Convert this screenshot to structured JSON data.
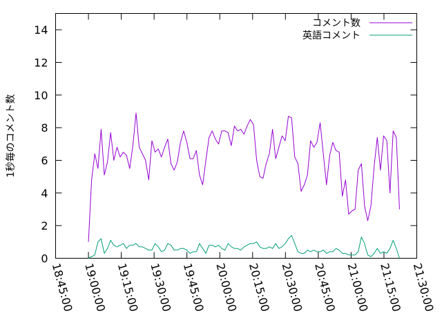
{
  "chart_data": {
    "type": "line",
    "title": "",
    "xlabel": "",
    "ylabel": "1秒毎のコメント数",
    "xlim": [
      "18:45:00",
      "21:30:00"
    ],
    "ylim": [
      0,
      15
    ],
    "grid": false,
    "legend_position": "top-right",
    "x_tick_labels": [
      "18:45:00",
      "19:00:00",
      "19:15:00",
      "19:30:00",
      "19:45:00",
      "20:00:00",
      "20:15:00",
      "20:30:00",
      "20:45:00",
      "21:00:00",
      "21:15:00",
      "21:30:00"
    ],
    "y_tick_labels": [
      "0",
      "2",
      "4",
      "6",
      "8",
      "10",
      "12",
      "14"
    ],
    "colors": {
      "comments": "#9400d3",
      "english": "#009e73"
    },
    "x": [
      "19:00:00",
      "19:01:27",
      "19:02:54",
      "19:04:21",
      "19:05:48",
      "19:07:15",
      "19:08:42",
      "19:10:09",
      "19:11:36",
      "19:13:03",
      "19:14:30",
      "19:15:57",
      "19:17:24",
      "19:18:51",
      "19:20:18",
      "19:21:45",
      "19:23:12",
      "19:24:39",
      "19:26:06",
      "19:27:33",
      "19:29:00",
      "19:30:27",
      "19:31:54",
      "19:33:21",
      "19:34:48",
      "19:36:15",
      "19:37:42",
      "19:39:09",
      "19:40:36",
      "19:42:03",
      "19:43:30",
      "19:44:57",
      "19:46:24",
      "19:47:51",
      "19:49:18",
      "19:50:45",
      "19:52:12",
      "19:53:39",
      "19:55:06",
      "19:56:33",
      "19:58:00",
      "19:59:27",
      "20:00:54",
      "20:02:21",
      "20:03:48",
      "20:05:15",
      "20:06:42",
      "20:08:09",
      "20:09:36",
      "20:11:03",
      "20:12:30",
      "20:13:57",
      "20:15:24",
      "20:16:51",
      "20:18:18",
      "20:19:45",
      "20:21:12",
      "20:22:39",
      "20:24:06",
      "20:25:33",
      "20:27:00",
      "20:28:27",
      "20:29:54",
      "20:31:21",
      "20:32:48",
      "20:34:15",
      "20:35:42",
      "20:37:09",
      "20:38:36",
      "20:40:03",
      "20:41:30",
      "20:42:57",
      "20:44:24",
      "20:45:51",
      "20:47:18",
      "20:48:45",
      "20:50:12",
      "20:51:39",
      "20:53:06",
      "20:54:33",
      "20:56:00",
      "20:57:27",
      "20:58:54",
      "21:00:21",
      "21:01:48",
      "21:03:15",
      "21:04:42",
      "21:06:09",
      "21:07:36",
      "21:09:03",
      "21:10:30",
      "21:11:57",
      "21:13:24",
      "21:14:51",
      "21:16:18",
      "21:17:45",
      "21:19:12",
      "21:20:39",
      "21:22:06"
    ],
    "series": [
      {
        "name": "コメント数",
        "values": [
          1.0,
          4.8,
          6.4,
          5.5,
          7.9,
          5.1,
          5.9,
          7.7,
          6.0,
          6.8,
          6.2,
          6.5,
          6.3,
          5.5,
          6.9,
          8.9,
          6.8,
          6.4,
          6.0,
          4.8,
          7.2,
          6.5,
          6.7,
          6.2,
          6.8,
          7.3,
          5.8,
          5.4,
          5.9,
          7.1,
          7.8,
          7.1,
          6.1,
          6.1,
          6.6,
          5.1,
          4.5,
          6.0,
          7.4,
          7.8,
          7.3,
          7.0,
          7.8,
          7.8,
          7.7,
          6.9,
          8.1,
          7.8,
          7.9,
          7.6,
          8.1,
          8.5,
          8.2,
          6.0,
          5.0,
          4.9,
          5.8,
          6.4,
          7.9,
          6.1,
          6.8,
          7.5,
          7.2,
          8.7,
          8.6,
          6.2,
          5.8,
          4.1,
          4.5,
          5.1,
          7.2,
          6.8,
          7.1,
          8.3,
          6.4,
          4.5,
          6.3,
          7.1,
          6.6,
          6.5,
          3.8,
          4.8,
          2.7,
          2.9,
          3.0,
          5.4,
          5.8,
          3.2,
          2.3,
          3.2,
          5.6,
          7.4,
          5.4,
          7.5,
          7.2,
          4.0,
          7.8,
          7.4,
          3.0
        ]
      },
      {
        "name": "英語コメント",
        "values": [
          0.0,
          0.1,
          0.2,
          1.0,
          1.2,
          0.3,
          0.6,
          1.1,
          0.8,
          0.7,
          0.8,
          0.9,
          0.6,
          0.8,
          0.8,
          0.9,
          0.7,
          0.7,
          0.6,
          0.5,
          0.5,
          0.9,
          0.7,
          0.4,
          0.5,
          0.9,
          0.8,
          0.5,
          0.5,
          0.6,
          0.6,
          0.5,
          0.3,
          0.4,
          0.4,
          0.9,
          0.6,
          0.3,
          0.8,
          0.8,
          0.7,
          0.8,
          0.6,
          0.5,
          0.9,
          0.7,
          0.6,
          0.6,
          0.5,
          0.7,
          0.8,
          0.9,
          0.9,
          1.0,
          0.7,
          0.6,
          0.6,
          0.7,
          0.6,
          0.9,
          0.6,
          0.7,
          0.9,
          1.2,
          1.4,
          0.9,
          0.4,
          0.3,
          0.3,
          0.5,
          0.4,
          0.5,
          0.4,
          0.4,
          0.5,
          0.3,
          0.4,
          0.4,
          0.6,
          0.5,
          0.3,
          0.3,
          0.2,
          0.2,
          0.2,
          0.4,
          1.3,
          0.9,
          0.2,
          0.1,
          0.3,
          0.6,
          0.3,
          0.4,
          0.3,
          0.6,
          1.1,
          0.6,
          0.0
        ]
      }
    ]
  }
}
